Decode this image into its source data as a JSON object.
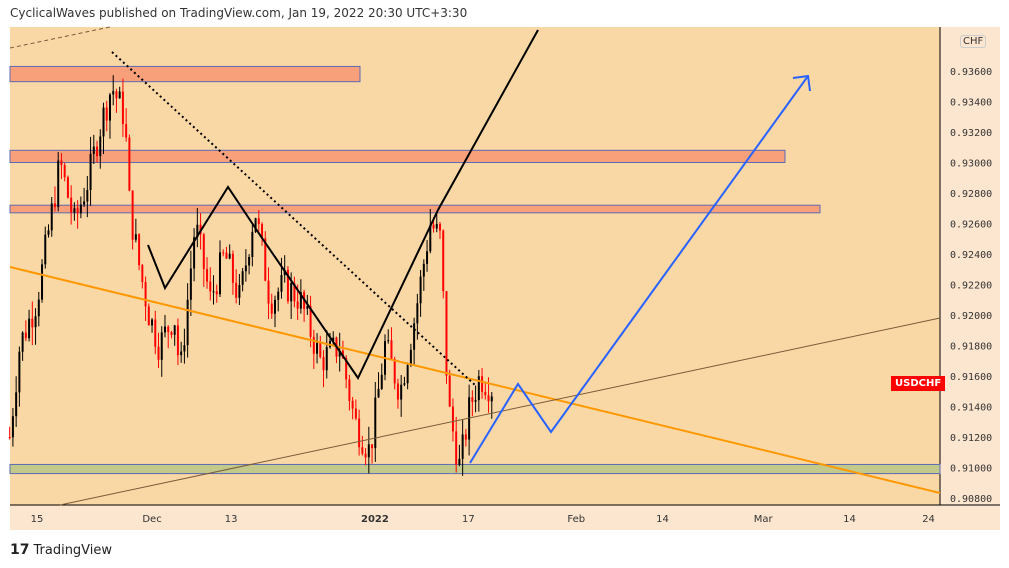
{
  "header": {
    "text": "CyclicalWaves published on TradingView.com, Jan 19, 2022 20:30 UTC+3:30"
  },
  "footer": {
    "logo_text": "TradingView",
    "logo_mark": "17"
  },
  "symbol_label": "USDCHF",
  "currency_label": "CHF",
  "colors": {
    "background": "#fad8a6",
    "axis_bg": "#fce6cf",
    "up": "#000000",
    "down": "#ff0000",
    "orange_line": "#ff9800",
    "blue_path": "#2962ff",
    "zone_red": "#f7a07a",
    "zone_green": "#c2c98a"
  },
  "chart_data": {
    "type": "candlestick",
    "title": "USDCHF",
    "ylim": [
      0.9071,
      0.9394
    ],
    "y_ticks": [
      "0.93600",
      "0.93400",
      "0.93200",
      "0.93000",
      "0.92800",
      "0.92600",
      "0.92400",
      "0.92200",
      "0.92000",
      "0.91800",
      "0.91600",
      "0.91400",
      "0.91200",
      "0.91000",
      "0.90800"
    ],
    "y_tick_values": [
      0.936,
      0.934,
      0.932,
      0.93,
      0.928,
      0.926,
      0.924,
      0.922,
      0.92,
      0.918,
      0.916,
      0.914,
      0.912,
      0.91,
      0.908
    ],
    "x_ticks": [
      "15",
      "Dec",
      "13",
      "2022",
      "17",
      "Feb",
      "14",
      "Mar",
      "14",
      "24"
    ],
    "x_tick_days": [
      0,
      16,
      27,
      47,
      60,
      75,
      87,
      101,
      113,
      124
    ],
    "price_path_day_price": [
      [
        -3.8,
        0.912
      ],
      [
        -2.4,
        0.918
      ],
      [
        0,
        0.921
      ],
      [
        1.8,
        0.926
      ],
      [
        3.2,
        0.93
      ],
      [
        5.2,
        0.926
      ],
      [
        7.2,
        0.929
      ],
      [
        8.6,
        0.932
      ],
      [
        10.4,
        0.935
      ],
      [
        12.2,
        0.933
      ],
      [
        12.9,
        0.927
      ],
      [
        14.3,
        0.923
      ],
      [
        15.6,
        0.92
      ],
      [
        17,
        0.918
      ],
      [
        19.1,
        0.92
      ],
      [
        19.9,
        0.916
      ],
      [
        22,
        0.926
      ],
      [
        24.1,
        0.921
      ],
      [
        26.1,
        0.924
      ],
      [
        28.2,
        0.921
      ],
      [
        30.3,
        0.927
      ],
      [
        32.4,
        0.921
      ],
      [
        34.5,
        0.922
      ],
      [
        36.6,
        0.921
      ],
      [
        39.4,
        0.917
      ],
      [
        42.1,
        0.918
      ],
      [
        44.2,
        0.913
      ],
      [
        46.3,
        0.911
      ],
      [
        48.4,
        0.918
      ],
      [
        50.5,
        0.915
      ],
      [
        52.6,
        0.92
      ],
      [
        54.7,
        0.926
      ],
      [
        56.1,
        0.925
      ],
      [
        57.2,
        0.914
      ],
      [
        58.8,
        0.91
      ],
      [
        60.2,
        0.914
      ],
      [
        61.6,
        0.916
      ],
      [
        63.7,
        0.915
      ]
    ]
  }
}
